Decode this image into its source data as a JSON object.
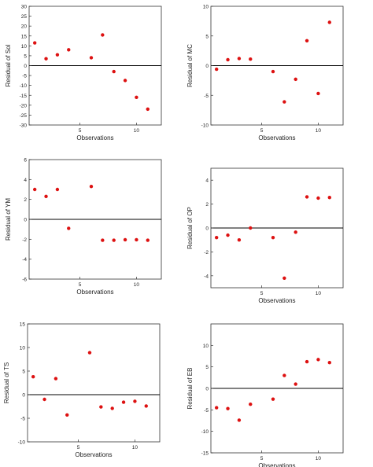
{
  "figure": {
    "background": "#ffffff",
    "frame_color": "#333333",
    "zero_line_color": "#000000",
    "point_color": "#dd1111"
  },
  "chart_data": [
    {
      "type": "scatter",
      "title": "",
      "xlabel": "Observations",
      "ylabel": "Residual of Sol",
      "xlim": [
        0.5,
        12.2
      ],
      "ylim": [
        -30,
        30
      ],
      "xticks": [
        5,
        10
      ],
      "yticks": [
        -30,
        -25,
        -20,
        -15,
        -10,
        -5,
        0,
        5,
        10,
        15,
        20,
        25,
        30
      ],
      "zero_line": true,
      "grid": false,
      "series": [
        {
          "x": [
            1,
            2,
            3,
            4,
            6,
            7,
            8,
            9,
            10,
            11
          ],
          "y": [
            11.5,
            3.5,
            5.5,
            8,
            4,
            15.5,
            -3,
            -7.5,
            -16,
            -22
          ]
        }
      ]
    },
    {
      "type": "scatter",
      "title": "",
      "xlabel": "Observations",
      "ylabel": "Residual of MC",
      "xlim": [
        0.5,
        12.2
      ],
      "ylim": [
        -10,
        10
      ],
      "xticks": [
        5,
        10
      ],
      "yticks": [
        -10,
        -5,
        0,
        5,
        10
      ],
      "zero_line": true,
      "grid": false,
      "series": [
        {
          "x": [
            1,
            2,
            3,
            4,
            6,
            7,
            8,
            9,
            10,
            11
          ],
          "y": [
            -0.6,
            1,
            1.2,
            1.1,
            -1,
            -6.1,
            -2.3,
            4.2,
            -4.7,
            7.3
          ]
        }
      ]
    },
    {
      "type": "scatter",
      "title": "",
      "xlabel": "Observations",
      "ylabel": "Residual of YM",
      "xlim": [
        0.5,
        12.2
      ],
      "ylim": [
        -6,
        6
      ],
      "xticks": [
        5,
        10
      ],
      "yticks": [
        -6,
        -4,
        -2,
        0,
        2,
        4,
        6
      ],
      "zero_line": true,
      "grid": false,
      "series": [
        {
          "x": [
            1,
            2,
            3,
            4,
            6,
            7,
            8,
            9,
            10,
            11
          ],
          "y": [
            3,
            2.3,
            3,
            -0.9,
            3.3,
            -2.1,
            -2.1,
            -2.05,
            -2.05,
            -2.1
          ]
        }
      ]
    },
    {
      "type": "scatter",
      "title": "",
      "xlabel": "Observations",
      "ylabel": "Residual of OP",
      "xlim": [
        0.5,
        12.2
      ],
      "ylim": [
        -5,
        5
      ],
      "xticks": [
        5,
        10
      ],
      "yticks": [
        -4,
        -2,
        0,
        2,
        4
      ],
      "zero_line": true,
      "grid": false,
      "series": [
        {
          "x": [
            1,
            2,
            3,
            4,
            6,
            7,
            8,
            9,
            10,
            11
          ],
          "y": [
            -0.8,
            -0.6,
            -1,
            0,
            -0.8,
            -4.2,
            -0.35,
            2.6,
            2.5,
            2.55
          ]
        }
      ]
    },
    {
      "type": "scatter",
      "title": "",
      "xlabel": "Observations",
      "ylabel": "Residual of TS",
      "xlim": [
        0.5,
        12.2
      ],
      "ylim": [
        -10,
        15
      ],
      "xticks": [
        5,
        10
      ],
      "yticks": [
        -10,
        -5,
        0,
        5,
        10,
        15
      ],
      "zero_line": true,
      "grid": false,
      "series": [
        {
          "x": [
            1,
            2,
            3,
            4,
            6,
            7,
            8,
            9,
            10,
            11
          ],
          "y": [
            3.8,
            -1,
            3.4,
            -4.3,
            8.9,
            -2.6,
            -2.9,
            -1.6,
            -1.4,
            -2.4
          ]
        }
      ]
    },
    {
      "type": "scatter",
      "title": "",
      "xlabel": "Observations",
      "ylabel": "Residual of EB",
      "xlim": [
        0.5,
        12.2
      ],
      "ylim": [
        -15,
        15
      ],
      "xticks": [
        5,
        10
      ],
      "yticks": [
        -15,
        -10,
        -5,
        0,
        5,
        10
      ],
      "zero_line": true,
      "grid": false,
      "series": [
        {
          "x": [
            1,
            2,
            3,
            4,
            6,
            7,
            8,
            9,
            10,
            11
          ],
          "y": [
            -4.5,
            -4.7,
            -7.4,
            -3.7,
            -2.5,
            3,
            1,
            6.2,
            6.7,
            6
          ]
        }
      ]
    }
  ]
}
